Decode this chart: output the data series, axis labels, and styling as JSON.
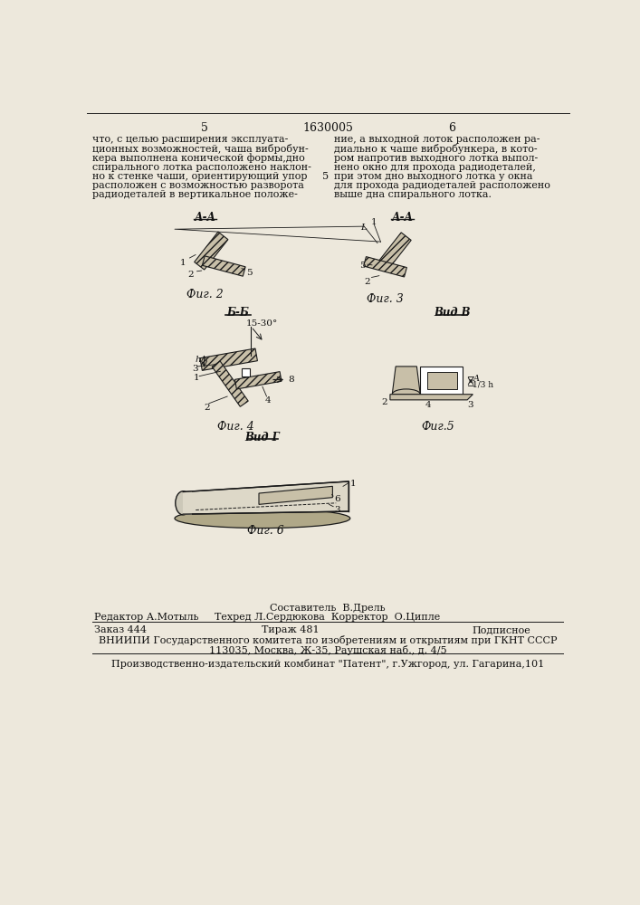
{
  "page_number_left": "5",
  "page_number_center": "1630005",
  "page_number_right": "6",
  "text_left": "что, с целью расширения эксплуата-\nционных возможностей, чаша вибробун-\nкера выполнена конической формы,дно\nспирального лотка расположено наклон-\nно к стенке чаши, ориентирующий упор\nрасположен с возможностью разворота\nрадиодеталей в вертикальное положе-",
  "text_right": "ние, а выходной лоток расположен ра-\nдиально к чаше вибробункера, в кото-\nром напротив выходного лотка выпол-\nнено окно для прохода радиодеталей,\nпри этом дно выходного лотка у окна\nдля прохода радиодеталей расположено\nвыше дна спирального лотка.",
  "text_mid_number": "5",
  "fig2_label": "А-А",
  "fig3_label": "А-А",
  "fig4_label": "Б-Б",
  "fig4_angle": "15-30°",
  "fig5_label": "Вид В",
  "fig6_label": "Вид Г",
  "caption2": "Фиг. 2",
  "caption3": "Фиг. 3",
  "caption4": "Фиг. 4",
  "caption5": "Фиг.5",
  "caption6": "Фиг. 6",
  "footer_line1": "Составитель  В.Дрель",
  "footer_line2_left": "Редактор А.Мотыль",
  "footer_line2_mid": "Техред Л.Сердюкова  Корректор  О.Ципле",
  "footer_line3_left": "Заказ 444",
  "footer_line3_mid": "Тираж 481",
  "footer_line3_right": "Подписное",
  "footer_line4": "ВНИИПИ Государственного комитета по изобретениям и открытиям при ГКНТ СССР",
  "footer_line5": "113035, Москва, Ж-35, Раушская наб., д. 4/5",
  "footer_line6": "Производственно-издательский комбинат \"Патент\", г.Ужгород, ул. Гагарина,101",
  "bg_color": "#ede8dc",
  "text_color": "#111111",
  "line_color": "#1a1a1a",
  "hatch_color": "#1a1a1a",
  "fill_color": "#c8bfa8"
}
